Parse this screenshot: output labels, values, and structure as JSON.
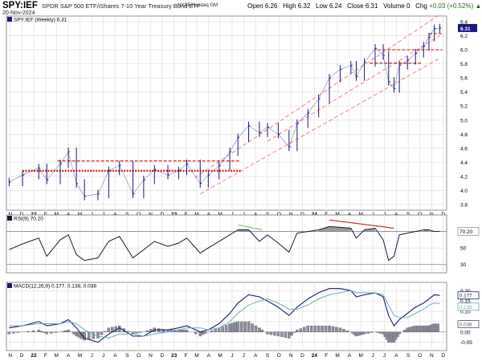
{
  "header": {
    "ticker": "SPY:IEF",
    "full_name": "SPDR S&P 500 ETF/iShares 7-10 Year Treasury Bond ETF",
    "exchange": "NYSE/Nasdaq GM",
    "date": "20-Nov-2024",
    "open_label": "Open",
    "open": "6.26",
    "high_label": "High",
    "high": "6.32",
    "low_label": "Low",
    "low": "6.24",
    "close_label": "Close",
    "close": "6.31",
    "volume_label": "Volume",
    "volume": "0",
    "chg_label": "Chg",
    "chg": "+0.03 (+0.52%)",
    "chg_arrow": "▲",
    "up_color": "#1b6e1b"
  },
  "chart_data": [
    {
      "type": "line",
      "panel": "price",
      "legend": "SPY:IEF (Weekly) 6.31",
      "y_ticks": [
        "6.4",
        "6.2",
        "6.0",
        "5.8",
        "5.6",
        "5.4",
        "5.2",
        "5.0",
        "4.8",
        "4.6",
        "4.4",
        "4.2",
        "4.0",
        "3.8"
      ],
      "ylim": [
        3.72,
        6.48
      ],
      "last_value_label": "6.31",
      "x_tick_labels": [
        "N",
        "D",
        "22",
        "F",
        "M",
        "A",
        "M",
        "J",
        "J",
        "A",
        "S",
        "O",
        "N",
        "D",
        "23",
        "F",
        "M",
        "A",
        "M",
        "J",
        "J",
        "A",
        "S",
        "O",
        "N",
        "D",
        "24",
        "F",
        "M",
        "A",
        "M",
        "J",
        "J",
        "A",
        "S",
        "O",
        "N",
        "D"
      ],
      "x": [
        "2021-10-29",
        "2021-12-03",
        "2022-01-14",
        "2022-02-04",
        "2022-03-11",
        "2022-04-01",
        "2022-04-22",
        "2022-05-13",
        "2022-06-17",
        "2022-07-15",
        "2022-08-12",
        "2022-09-16",
        "2022-10-14",
        "2022-11-11",
        "2022-12-16",
        "2023-01-13",
        "2023-02-03",
        "2023-03-10",
        "2023-03-31",
        "2023-04-28",
        "2023-05-26",
        "2023-06-16",
        "2023-07-14",
        "2023-08-11",
        "2023-09-01",
        "2023-09-29",
        "2023-10-27",
        "2023-11-17",
        "2023-12-15",
        "2024-01-12",
        "2024-02-09",
        "2024-03-08",
        "2024-04-05",
        "2024-04-19",
        "2024-05-10",
        "2024-06-07",
        "2024-06-28",
        "2024-07-12",
        "2024-07-26",
        "2024-08-09",
        "2024-08-30",
        "2024-09-20",
        "2024-10-11",
        "2024-10-25",
        "2024-11-08",
        "2024-11-22"
      ],
      "values": [
        4.12,
        4.22,
        4.32,
        4.15,
        4.38,
        4.55,
        4.1,
        3.92,
        3.95,
        4.28,
        4.36,
        3.95,
        4.15,
        4.3,
        4.22,
        4.28,
        4.38,
        4.1,
        4.22,
        4.35,
        4.55,
        4.75,
        4.92,
        4.82,
        4.9,
        4.8,
        4.62,
        4.95,
        5.1,
        5.3,
        5.6,
        5.72,
        5.78,
        5.62,
        5.82,
        6.02,
        5.92,
        5.55,
        5.45,
        5.78,
        5.85,
        5.95,
        6.05,
        6.18,
        6.3,
        6.31
      ],
      "annotations": {
        "support_resistance": [
          {
            "y": 4.28,
            "style": "bold-dotted"
          },
          {
            "y": 4.42,
            "style": "dashed"
          },
          {
            "y": 6.23,
            "style": "dashed"
          },
          {
            "y": 6.0,
            "style": "dashed"
          },
          {
            "y": 5.81,
            "style": "dashed"
          }
        ]
      }
    },
    {
      "type": "line",
      "panel": "rsi",
      "legend": "RSI(9) 70.20",
      "y_ticks": [
        "70",
        "50",
        "30"
      ],
      "ylim": [
        20,
        90
      ],
      "last_value_label": "70.20",
      "values": [
        48,
        55,
        62,
        40,
        60,
        66,
        42,
        35,
        38,
        58,
        64,
        38,
        48,
        58,
        52,
        56,
        62,
        44,
        50,
        58,
        66,
        72,
        72,
        58,
        66,
        56,
        45,
        68,
        70,
        72,
        76,
        75,
        74,
        62,
        72,
        74,
        60,
        35,
        40,
        66,
        68,
        70,
        72,
        72,
        70,
        70.2
      ]
    },
    {
      "type": "line",
      "panel": "macd",
      "legend": "MACD(12,26,9) 0.177, 0.138, 0.038",
      "y_ticks": [
        "0.20",
        "0.15",
        "0.10",
        "0.05",
        "0.00",
        "-0.05"
      ],
      "ylim": [
        -0.09,
        0.24
      ],
      "last_value_labels": [
        "0.177",
        "0.138",
        "0.038"
      ],
      "series": [
        {
          "name": "MACD",
          "color": "#1a1a6e",
          "values": [
            0.02,
            0.03,
            0.05,
            0.03,
            0.04,
            0.06,
            0.02,
            -0.03,
            -0.05,
            -0.01,
            0.02,
            -0.02,
            -0.02,
            0.01,
            0.01,
            0.02,
            0.03,
            0.0,
            0.01,
            0.04,
            0.09,
            0.14,
            0.18,
            0.17,
            0.15,
            0.12,
            0.08,
            0.12,
            0.16,
            0.19,
            0.21,
            0.21,
            0.2,
            0.17,
            0.18,
            0.19,
            0.17,
            0.08,
            0.03,
            0.06,
            0.09,
            0.12,
            0.14,
            0.16,
            0.18,
            0.177
          ]
        },
        {
          "name": "Signal",
          "color": "#6aaeb4",
          "values": [
            0.03,
            0.03,
            0.04,
            0.04,
            0.04,
            0.05,
            0.04,
            0.01,
            -0.02,
            -0.03,
            -0.01,
            -0.01,
            -0.02,
            -0.01,
            0.0,
            0.01,
            0.02,
            0.02,
            0.01,
            0.02,
            0.05,
            0.09,
            0.13,
            0.15,
            0.16,
            0.14,
            0.11,
            0.11,
            0.13,
            0.16,
            0.18,
            0.19,
            0.2,
            0.19,
            0.19,
            0.19,
            0.18,
            0.13,
            0.08,
            0.07,
            0.07,
            0.09,
            0.11,
            0.13,
            0.14,
            0.138
          ]
        }
      ],
      "histogram": {
        "name": "Histogram",
        "values": [
          -0.01,
          0.0,
          0.01,
          -0.01,
          0.0,
          0.01,
          -0.02,
          -0.04,
          -0.03,
          0.02,
          0.03,
          -0.01,
          0.0,
          0.02,
          0.01,
          0.01,
          0.01,
          -0.02,
          0.0,
          0.02,
          0.04,
          0.05,
          0.05,
          0.02,
          -0.01,
          -0.02,
          -0.03,
          0.01,
          0.03,
          0.03,
          0.03,
          0.02,
          0.0,
          -0.02,
          -0.01,
          0.0,
          -0.01,
          -0.05,
          -0.05,
          -0.01,
          0.02,
          0.03,
          0.03,
          0.03,
          0.04,
          0.038
        ]
      }
    }
  ]
}
